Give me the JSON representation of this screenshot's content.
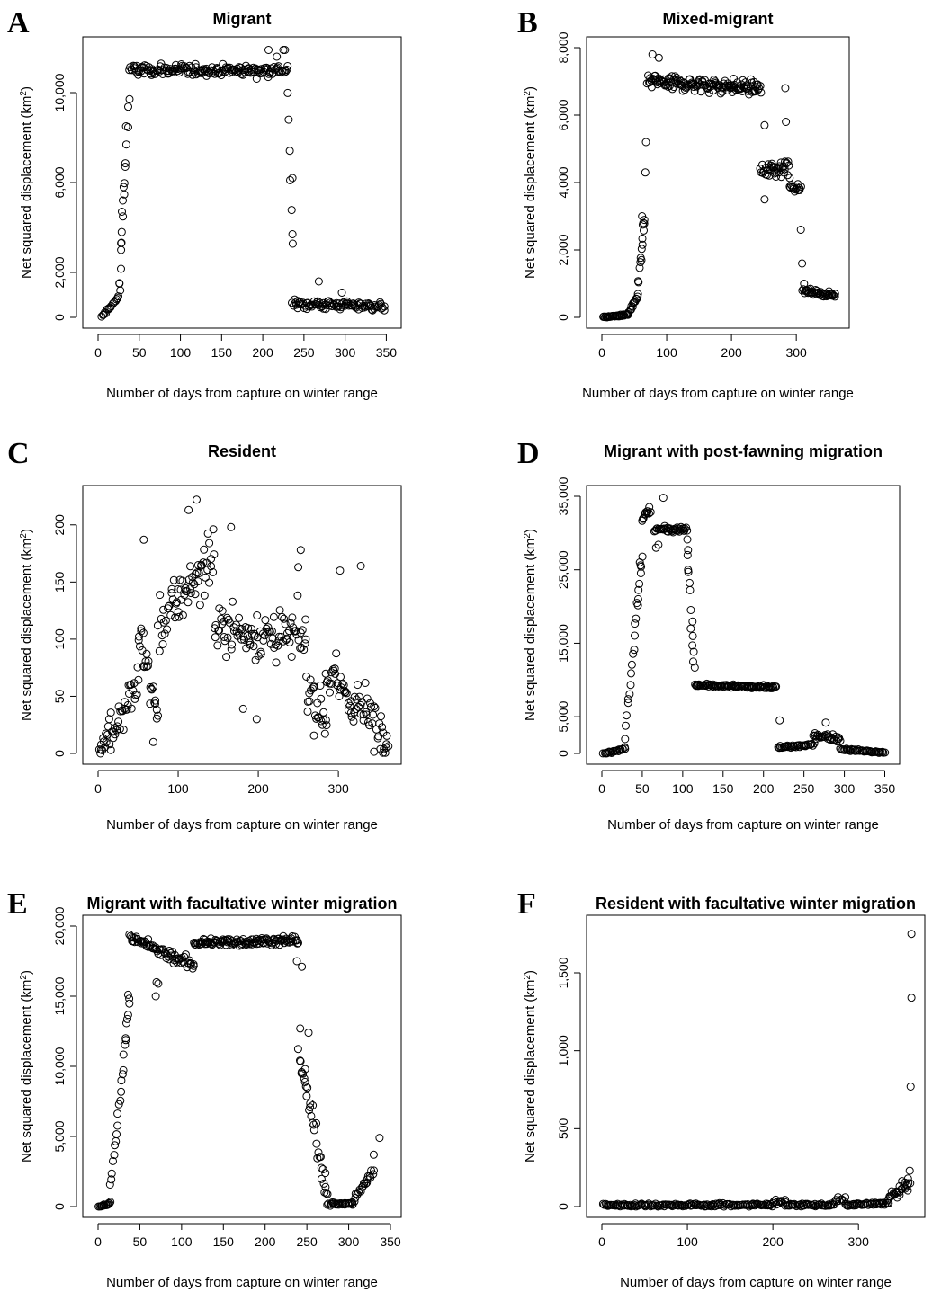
{
  "figure": {
    "panels": [
      {
        "letter": "A",
        "title": "Migrant",
        "xlabel": "Number of days from capture on winter range",
        "ylabel_main": "Net squared displacement (km",
        "ylabel_sup": "2",
        "ylabel_end": ")"
      },
      {
        "letter": "B",
        "title": "Mixed-migrant",
        "xlabel": "Number of days from capture on winter range",
        "ylabel_main": "Net squared displacement (km",
        "ylabel_sup": "2",
        "ylabel_end": ")"
      },
      {
        "letter": "C",
        "title": "Resident",
        "xlabel": "Number of days from capture on winter range",
        "ylabel_main": "Net squared displacement (km",
        "ylabel_sup": "2",
        "ylabel_end": ")"
      },
      {
        "letter": "D",
        "title": "Migrant with post-fawning migration",
        "xlabel": "Number of days from capture on winter range",
        "ylabel_main": "Net squared displacement (km",
        "ylabel_sup": "2",
        "ylabel_end": ")"
      },
      {
        "letter": "E",
        "title": "Migrant with facultative winter migration",
        "xlabel": "Number of days from capture on winter range",
        "ylabel_main": "Net squared displacement (km",
        "ylabel_sup": "2",
        "ylabel_end": ")"
      },
      {
        "letter": "F",
        "title": "Resident with facultative winter migration",
        "xlabel": "Number of days from capture on winter range",
        "ylabel_main": "Net squared displacement (km",
        "ylabel_sup": "2",
        "ylabel_end": ")"
      }
    ]
  },
  "chart_data": [
    {
      "panel": "A",
      "type": "scatter",
      "title": "Migrant",
      "xlabel": "Number of days from capture on winter range",
      "ylabel": "Net squared displacement (km2)",
      "xlim": [
        0,
        355
      ],
      "ylim": [
        0,
        12000
      ],
      "xticks": [
        0,
        50,
        100,
        150,
        200,
        250,
        300,
        350
      ],
      "xtick_labels": [
        "0",
        "50",
        "100",
        "150",
        "200",
        "250",
        "300",
        "350"
      ],
      "yticks": [
        0,
        2000,
        6000,
        10000
      ],
      "ytick_labels": [
        "0",
        "2,000",
        "6,000",
        "10,000"
      ],
      "grid": false,
      "legend": "none",
      "marker": "open-circle",
      "segments": [
        {
          "x_from": 4,
          "x_to": 25,
          "n": 16,
          "y_from": 0,
          "y_to": 900,
          "noise": 150
        },
        {
          "x_from": 26,
          "x_to": 38,
          "n": 12,
          "y_from": 1500,
          "y_to": 10000,
          "noise": 500
        },
        {
          "x_from": 38,
          "x_to": 230,
          "n": 170,
          "y_from": 11000,
          "y_to": 11000,
          "noise": 350
        },
        {
          "x_from": 230,
          "x_to": 236,
          "n": 6,
          "y_from": 10000,
          "y_to": 3400,
          "noise": 300
        },
        {
          "x_from": 236,
          "x_to": 348,
          "n": 95,
          "y_from": 600,
          "y_to": 500,
          "noise": 300
        }
      ],
      "points": [
        [
          236,
          6200
        ],
        [
          236,
          3700
        ],
        [
          217,
          11600
        ],
        [
          225,
          11900
        ],
        [
          227,
          11900
        ],
        [
          207,
          11900
        ],
        [
          296,
          1100
        ],
        [
          268,
          1600
        ],
        [
          34,
          8500
        ],
        [
          33,
          6700
        ],
        [
          31,
          5800
        ],
        [
          30,
          5200
        ],
        [
          29,
          4700
        ],
        [
          28,
          3300
        ],
        [
          28,
          3000
        ],
        [
          26,
          1500
        ],
        [
          27,
          1200
        ]
      ]
    },
    {
      "panel": "B",
      "type": "scatter",
      "title": "Mixed-migrant",
      "xlabel": "Number of days from capture on winter range",
      "ylabel": "Net squared displacement (km2)",
      "xlim": [
        0,
        365
      ],
      "ylim": [
        0,
        8000
      ],
      "xticks": [
        0,
        100,
        200,
        300
      ],
      "xtick_labels": [
        "0",
        "100",
        "200",
        "300"
      ],
      "yticks": [
        0,
        2000,
        4000,
        6000,
        8000
      ],
      "ytick_labels": [
        "0",
        "2,000",
        "4,000",
        "6,000",
        "8,000"
      ],
      "grid": false,
      "legend": "none",
      "marker": "open-circle",
      "segments": [
        {
          "x_from": 2,
          "x_to": 40,
          "n": 32,
          "y_from": 0,
          "y_to": 80,
          "noise": 40
        },
        {
          "x_from": 40,
          "x_to": 55,
          "n": 14,
          "y_from": 100,
          "y_to": 600,
          "noise": 80
        },
        {
          "x_from": 55,
          "x_to": 66,
          "n": 12,
          "y_from": 700,
          "y_to": 3000,
          "noise": 200
        },
        {
          "x_from": 70,
          "x_to": 245,
          "n": 150,
          "y_from": 7000,
          "y_to": 6800,
          "noise": 300
        },
        {
          "x_from": 245,
          "x_to": 290,
          "n": 40,
          "y_from": 4300,
          "y_to": 4500,
          "noise": 400
        },
        {
          "x_from": 290,
          "x_to": 307,
          "n": 14,
          "y_from": 3900,
          "y_to": 3800,
          "noise": 150
        },
        {
          "x_from": 310,
          "x_to": 360,
          "n": 45,
          "y_from": 800,
          "y_to": 650,
          "noise": 100
        }
      ],
      "points": [
        [
          67,
          4300
        ],
        [
          68,
          5200
        ],
        [
          64,
          2800
        ],
        [
          63,
          2750
        ],
        [
          62,
          3000
        ],
        [
          61,
          1700
        ],
        [
          251,
          5700
        ],
        [
          251,
          3500
        ],
        [
          283,
          6800
        ],
        [
          284,
          5800
        ],
        [
          307,
          2600
        ],
        [
          309,
          1600
        ],
        [
          312,
          1000
        ],
        [
          78,
          7800
        ],
        [
          88,
          7700
        ]
      ]
    },
    {
      "panel": "C",
      "type": "scatter",
      "title": "Resident",
      "xlabel": "Number of days from capture on winter range",
      "ylabel": "Net squared displacement (km2)",
      "xlim": [
        0,
        365
      ],
      "ylim": [
        0,
        225
      ],
      "xticks": [
        0,
        100,
        200,
        300
      ],
      "xtick_labels": [
        "0",
        "100",
        "200",
        "300"
      ],
      "yticks": [
        0,
        50,
        100,
        150,
        200
      ],
      "ytick_labels": [
        "0",
        "50",
        "100",
        "150",
        "200"
      ],
      "grid": false,
      "legend": "none",
      "marker": "open-circle",
      "segments": [
        {
          "x_from": 2,
          "x_to": 50,
          "n": 45,
          "y_from": 5,
          "y_to": 60,
          "noise": 30
        },
        {
          "x_from": 50,
          "x_to": 75,
          "n": 25,
          "y_from": 110,
          "y_to": 30,
          "noise": 35
        },
        {
          "x_from": 75,
          "x_to": 145,
          "n": 65,
          "y_from": 110,
          "y_to": 175,
          "noise": 35
        },
        {
          "x_from": 145,
          "x_to": 260,
          "n": 100,
          "y_from": 110,
          "y_to": 100,
          "noise": 30
        },
        {
          "x_from": 260,
          "x_to": 285,
          "n": 25,
          "y_from": 60,
          "y_to": 30,
          "noise": 30
        },
        {
          "x_from": 285,
          "x_to": 362,
          "n": 70,
          "y_from": 70,
          "y_to": 15,
          "noise": 35
        }
      ],
      "points": [
        [
          123,
          222
        ],
        [
          113,
          213
        ],
        [
          166,
          198
        ],
        [
          57,
          187
        ],
        [
          3,
          0
        ],
        [
          16,
          3
        ],
        [
          69,
          10
        ],
        [
          250,
          163
        ],
        [
          253,
          178
        ],
        [
          302,
          160
        ],
        [
          328,
          164
        ],
        [
          181,
          39
        ],
        [
          198,
          30
        ],
        [
          360,
          8
        ]
      ]
    },
    {
      "panel": "D",
      "type": "scatter",
      "title": "Migrant with post-fawning migration",
      "xlabel": "Number of days from capture on winter range",
      "ylabel": "Net squared displacement (km2)",
      "xlim": [
        0,
        355
      ],
      "ylim": [
        0,
        35000
      ],
      "xticks": [
        0,
        50,
        100,
        150,
        200,
        250,
        300,
        350
      ],
      "xtick_labels": [
        "0",
        "50",
        "100",
        "150",
        "200",
        "250",
        "300",
        "350"
      ],
      "yticks": [
        0,
        5000,
        15000,
        25000,
        35000
      ],
      "ytick_labels": [
        "0",
        "5,000",
        "15,000",
        "25,000",
        "35,000"
      ],
      "grid": false,
      "legend": "none",
      "marker": "open-circle",
      "segments": [
        {
          "x_from": 2,
          "x_to": 28,
          "n": 20,
          "y_from": 0,
          "y_to": 600,
          "noise": 250
        },
        {
          "x_from": 28,
          "x_to": 50,
          "n": 22,
          "y_from": 1500,
          "y_to": 27000,
          "noise": 1200
        },
        {
          "x_from": 50,
          "x_to": 60,
          "n": 12,
          "y_from": 32000,
          "y_to": 33000,
          "noise": 800
        },
        {
          "x_from": 65,
          "x_to": 105,
          "n": 40,
          "y_from": 30500,
          "y_to": 30500,
          "noise": 500
        },
        {
          "x_from": 105,
          "x_to": 115,
          "n": 10,
          "y_from": 29000,
          "y_to": 12000,
          "noise": 1500
        },
        {
          "x_from": 115,
          "x_to": 215,
          "n": 95,
          "y_from": 9300,
          "y_to": 9000,
          "noise": 250
        },
        {
          "x_from": 218,
          "x_to": 262,
          "n": 38,
          "y_from": 800,
          "y_to": 1200,
          "noise": 300
        },
        {
          "x_from": 262,
          "x_to": 295,
          "n": 30,
          "y_from": 2500,
          "y_to": 2000,
          "noise": 500
        },
        {
          "x_from": 295,
          "x_to": 350,
          "n": 45,
          "y_from": 600,
          "y_to": 100,
          "noise": 200
        }
      ],
      "points": [
        [
          76,
          34800
        ],
        [
          220,
          4500
        ],
        [
          277,
          4200
        ],
        [
          45,
          21000
        ],
        [
          47,
          26000
        ],
        [
          48,
          25600
        ],
        [
          106,
          27000
        ],
        [
          107,
          24700
        ],
        [
          110,
          17000
        ],
        [
          112,
          14700
        ],
        [
          113,
          12500
        ],
        [
          67,
          28000
        ],
        [
          70,
          28400
        ]
      ]
    },
    {
      "panel": "E",
      "type": "scatter",
      "title": "Migrant with facultative winter migration",
      "xlabel": "Number of days from capture on winter range",
      "ylabel": "Net squared displacement (km2)",
      "xlim": [
        0,
        350
      ],
      "ylim": [
        0,
        20000
      ],
      "xticks": [
        0,
        50,
        100,
        150,
        200,
        250,
        300,
        350
      ],
      "xtick_labels": [
        "0",
        "50",
        "100",
        "150",
        "200",
        "250",
        "300",
        "350"
      ],
      "yticks": [
        0,
        5000,
        10000,
        15000,
        20000
      ],
      "ytick_labels": [
        "0",
        "5,000",
        "10,000",
        "15,000",
        "20,000"
      ],
      "grid": false,
      "legend": "none",
      "marker": "open-circle",
      "segments": [
        {
          "x_from": 1,
          "x_to": 14,
          "n": 14,
          "y_from": 0,
          "y_to": 200,
          "noise": 80
        },
        {
          "x_from": 14,
          "x_to": 38,
          "n": 25,
          "y_from": 500,
          "y_to": 15000,
          "noise": 800
        },
        {
          "x_from": 38,
          "x_to": 60,
          "n": 22,
          "y_from": 19200,
          "y_to": 18800,
          "noise": 400
        },
        {
          "x_from": 60,
          "x_to": 115,
          "n": 50,
          "y_from": 18500,
          "y_to": 17200,
          "noise": 500
        },
        {
          "x_from": 115,
          "x_to": 240,
          "n": 120,
          "y_from": 18800,
          "y_to": 19000,
          "noise": 400
        },
        {
          "x_from": 240,
          "x_to": 275,
          "n": 35,
          "y_from": 11000,
          "y_to": 800,
          "noise": 1200
        },
        {
          "x_from": 275,
          "x_to": 305,
          "n": 28,
          "y_from": 200,
          "y_to": 200,
          "noise": 150
        },
        {
          "x_from": 305,
          "x_to": 330,
          "n": 22,
          "y_from": 400,
          "y_to": 2500,
          "noise": 400
        }
      ],
      "points": [
        [
          242,
          12700
        ],
        [
          252,
          12400
        ],
        [
          337,
          4900
        ],
        [
          330,
          3700
        ],
        [
          36,
          15100
        ],
        [
          33,
          12000
        ],
        [
          69,
          15000
        ],
        [
          70,
          16000
        ],
        [
          72,
          15900
        ],
        [
          238,
          17500
        ],
        [
          244,
          17100
        ]
      ]
    },
    {
      "panel": "F",
      "type": "scatter",
      "title": "Resident with facultative winter migration",
      "xlabel": "Number of days from capture on winter range",
      "ylabel": "Net squared displacement (km2)",
      "xlim": [
        0,
        365
      ],
      "ylim": [
        0,
        1800
      ],
      "xticks": [
        0,
        100,
        200,
        300
      ],
      "xtick_labels": [
        "0",
        "100",
        "200",
        "300"
      ],
      "yticks": [
        0,
        500,
        1000,
        1500
      ],
      "ytick_labels": [
        "0",
        "500",
        "1,000",
        "1,500"
      ],
      "grid": false,
      "legend": "none",
      "marker": "open-circle",
      "segments": [
        {
          "x_from": 2,
          "x_to": 200,
          "n": 150,
          "y_from": 10,
          "y_to": 10,
          "noise": 15
        },
        {
          "x_from": 200,
          "x_to": 215,
          "n": 12,
          "y_from": 30,
          "y_to": 30,
          "noise": 20
        },
        {
          "x_from": 215,
          "x_to": 272,
          "n": 45,
          "y_from": 10,
          "y_to": 10,
          "noise": 12
        },
        {
          "x_from": 272,
          "x_to": 285,
          "n": 10,
          "y_from": 40,
          "y_to": 40,
          "noise": 25
        },
        {
          "x_from": 285,
          "x_to": 335,
          "n": 40,
          "y_from": 10,
          "y_to": 20,
          "noise": 12
        },
        {
          "x_from": 335,
          "x_to": 360,
          "n": 28,
          "y_from": 50,
          "y_to": 150,
          "noise": 50
        }
      ],
      "points": [
        [
          362,
          1750
        ],
        [
          362,
          1340
        ],
        [
          361,
          770
        ],
        [
          360,
          230
        ],
        [
          358,
          180
        ]
      ]
    }
  ]
}
